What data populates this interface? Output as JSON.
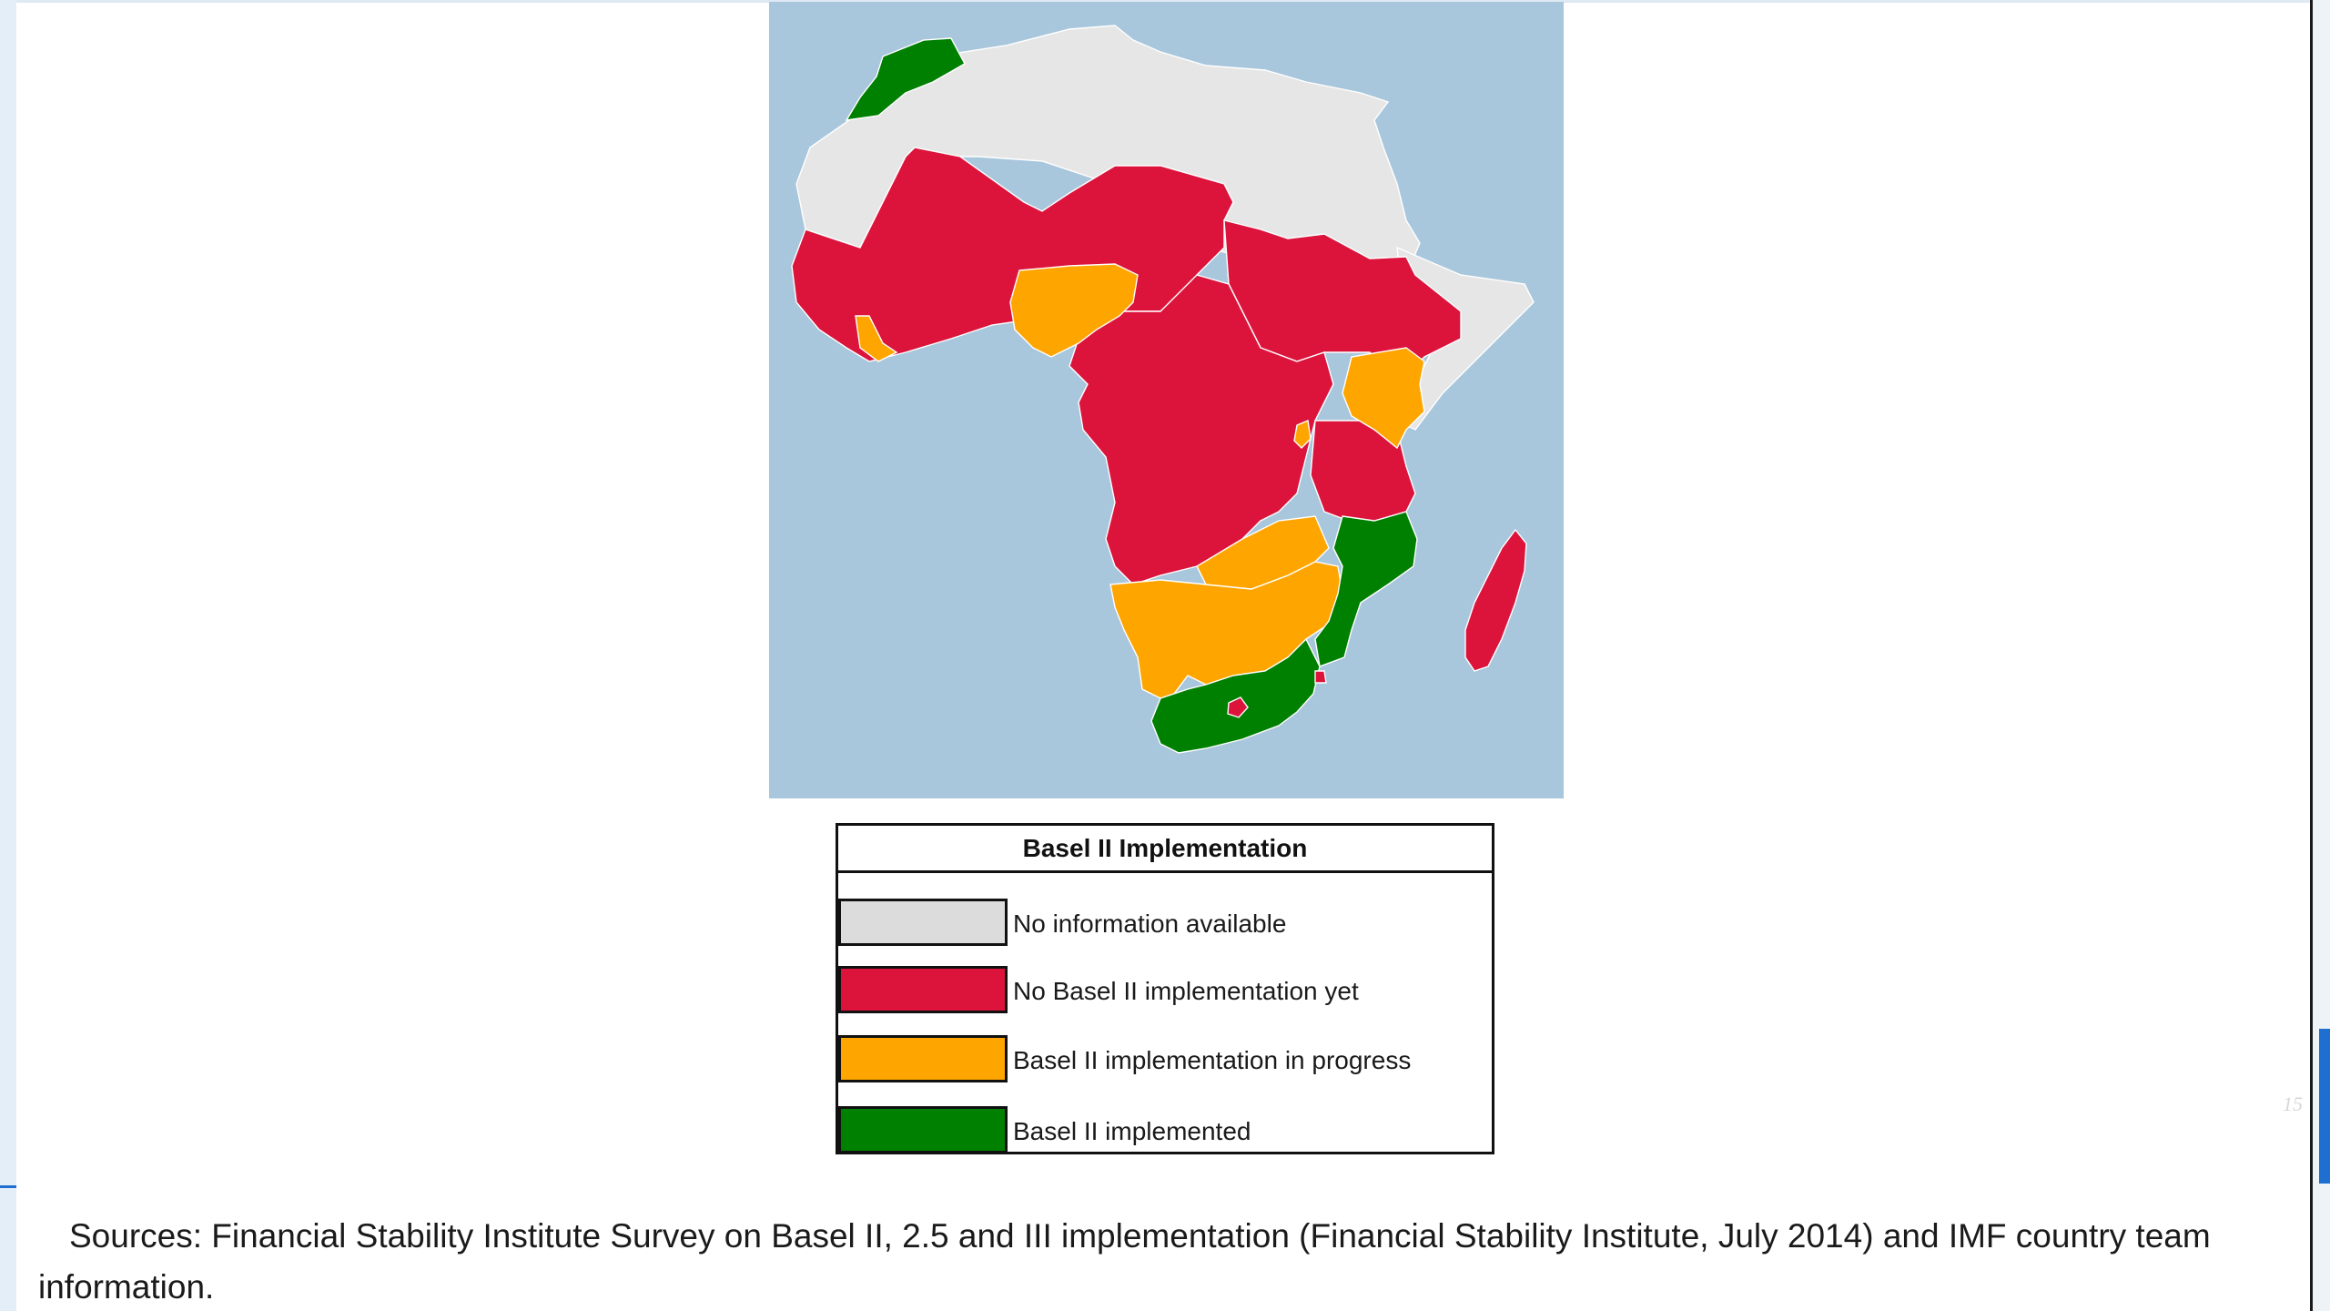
{
  "map": {
    "colors": {
      "ocean": "#a8c6dc",
      "no_information": "#e6e6e6",
      "not_implemented": "#dc143c",
      "in_progress": "#ffa500",
      "implemented": "#008000"
    }
  },
  "legend": {
    "title": "Basel II Implementation",
    "items": [
      {
        "label": "No information available",
        "color": "#dcdcdc",
        "status": "no-information"
      },
      {
        "label": "No Basel II implementation yet",
        "color": "#dc143c",
        "status": "not-implemented"
      },
      {
        "label": "Basel II implementation in progress",
        "color": "#ffa500",
        "status": "in-progress"
      },
      {
        "label": "Basel II implemented",
        "color": "#008000",
        "status": "implemented"
      }
    ]
  },
  "sources": {
    "text": "Sources: Financial Stability Institute Survey on Basel II, 2.5 and III implementation (Financial Stability Institute, July 2014) and IMF country team information."
  },
  "page": {
    "number": "15"
  }
}
